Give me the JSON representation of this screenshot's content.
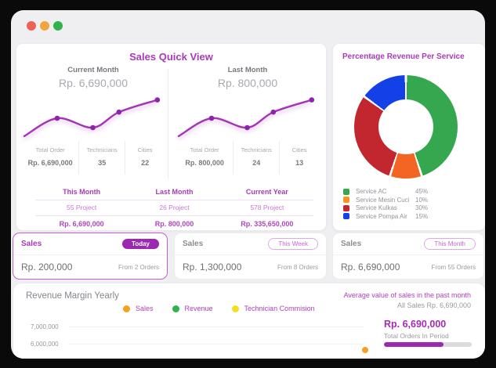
{
  "accent_color": "#9c27b0",
  "sales_quick_view": {
    "title": "Sales Quick View",
    "periods": [
      {
        "label": "Current Month",
        "amount": "Rp. 6,690,000",
        "stats": [
          {
            "label": "Total Order",
            "value": "Rp. 6,690,000"
          },
          {
            "label": "Technicians",
            "value": "35"
          },
          {
            "label": "Cities",
            "value": "22"
          }
        ]
      },
      {
        "label": "Last Month",
        "amount": "Rp. 800,000",
        "stats": [
          {
            "label": "Total Order",
            "value": "Rp. 800,000"
          },
          {
            "label": "Technicians",
            "value": "24"
          },
          {
            "label": "Cities",
            "value": "13"
          }
        ]
      }
    ],
    "summary": {
      "columns": [
        {
          "header": "This Month",
          "projects": "55 Project",
          "amount": "Rp. 6,690,000"
        },
        {
          "header": "Last Month",
          "projects": "26 Project",
          "amount": "Rp. 800,000"
        },
        {
          "header": "Current Year",
          "projects": "578 Project",
          "amount": "Rp. 335,650,000"
        }
      ]
    }
  },
  "revenue_per_service": {
    "title": "Percentage Revenue Per Service",
    "services": [
      {
        "label": "Service AC",
        "pct": "45%",
        "color": "#35a74e"
      },
      {
        "label": "Service Mesin Cuci",
        "pct": "10%",
        "color": "#f7941e"
      },
      {
        "label": "Service Kulkas",
        "pct": "30%",
        "color": "#c2262e"
      },
      {
        "label": "Service Pompa Air",
        "pct": "15%",
        "color": "#1440e8"
      }
    ]
  },
  "sales_cards": [
    {
      "title": "Sales",
      "badge": "Today",
      "amount": "Rp. 200,000",
      "orders": "From 2 Orders",
      "active": true
    },
    {
      "title": "Sales",
      "badge": "This Week",
      "amount": "Rp. 1,300,000",
      "orders": "From 8 Orders",
      "active": false
    },
    {
      "title": "Sales",
      "badge": "This Month",
      "amount": "Rp. 6,690,000",
      "orders": "From 55 Orders",
      "active": false
    }
  ],
  "revenue_margin": {
    "title": "Revenue Margin Yearly",
    "legend": [
      {
        "label": "Sales",
        "color": "#f7a11f"
      },
      {
        "label": "Revenue",
        "color": "#2eb44e"
      },
      {
        "label": "Technician Commision",
        "color": "#f2df1f"
      }
    ],
    "average_note": "Average value of sales in the past month",
    "all_sales": "All Sales Rp. 6,690,000",
    "total_amount": "Rp. 6,690,000",
    "total_label": "Total Orders In Period",
    "progress_pct": 68,
    "y_ticks": [
      "7,000,000",
      "6,000,000"
    ]
  },
  "chart_data": [
    {
      "type": "pie",
      "subtype": "donut",
      "title": "Percentage Revenue Per Service",
      "categories": [
        "Service AC",
        "Service Mesin Cuci",
        "Service Kulkas",
        "Service Pompa Air"
      ],
      "values": [
        45,
        10,
        30,
        15
      ],
      "colors": [
        "#35a74e",
        "#f26522",
        "#c2262e",
        "#1440e8"
      ],
      "start_angle_deg": 0,
      "direction": "clockwise",
      "legend_position": "bottom-left"
    },
    {
      "type": "line",
      "title": "Current Month sparkline (unlabeled axes)",
      "points_pct": [
        [
          0,
          4
        ],
        [
          24,
          48
        ],
        [
          50,
          25
        ],
        [
          69,
          63
        ],
        [
          97,
          93
        ]
      ],
      "color": "#a335b5",
      "note": "decorative trend line, no axis values shown"
    },
    {
      "type": "line",
      "title": "Last Month sparkline (unlabeled axes)",
      "points_pct": [
        [
          0,
          4
        ],
        [
          24,
          48
        ],
        [
          50,
          25
        ],
        [
          69,
          63
        ],
        [
          97,
          93
        ]
      ],
      "color": "#a335b5",
      "note": "decorative trend line, no axis values shown"
    },
    {
      "type": "line",
      "title": "Revenue Margin Yearly",
      "series": [
        {
          "name": "Sales"
        },
        {
          "name": "Revenue"
        },
        {
          "name": "Technician Commision"
        }
      ],
      "visible_y_ticks": [
        "7,000,000",
        "6,000,000"
      ],
      "note": "chart area cut off at bottom edge of screenshot; one orange data point visible"
    }
  ]
}
